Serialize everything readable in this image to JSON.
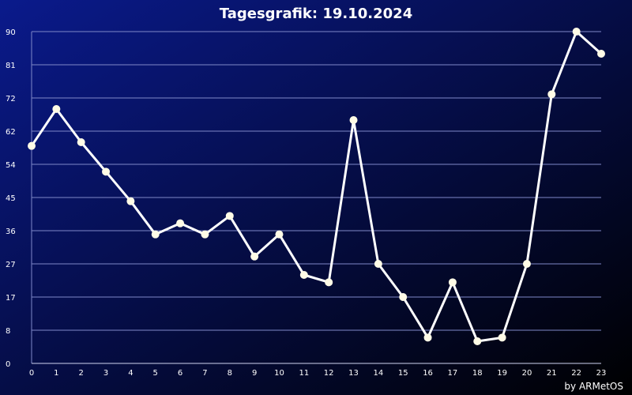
{
  "chart_data": {
    "type": "line",
    "title": "Tagesgrafik: 19.10.2024",
    "credit": "by ARMetOS",
    "xlabel": "",
    "ylabel": "",
    "x": [
      0,
      1,
      2,
      3,
      4,
      5,
      6,
      7,
      8,
      9,
      10,
      11,
      12,
      13,
      14,
      15,
      16,
      17,
      18,
      19,
      20,
      21,
      22,
      23
    ],
    "y_ticks": [
      "90",
      "81",
      "72",
      "62",
      "54",
      "45",
      "36",
      "27",
      "17",
      "8",
      "0"
    ],
    "ylim": [
      0,
      90
    ],
    "grid": true,
    "legend": "none",
    "series": [
      {
        "values": [
          59,
          69,
          60,
          52,
          44,
          35,
          38,
          35,
          40,
          29,
          35,
          24,
          22,
          66,
          27,
          18,
          7,
          22,
          6,
          7,
          27,
          73,
          90,
          84
        ]
      }
    ],
    "colors": {
      "background_top_left": "#0a1a8c",
      "background_bottom_right": "#000000",
      "line": "#ffffff",
      "marker": "#fffbe6",
      "grid": "#7f88c8",
      "text": "#ffffff"
    }
  }
}
